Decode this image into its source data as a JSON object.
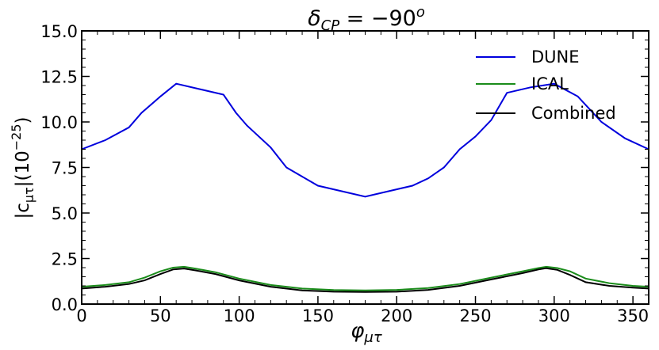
{
  "chart_data": {
    "type": "line",
    "title": "δ",
    "title_sub": "CP",
    "title_rest": " = −90",
    "title_sup": "o",
    "xlabel": "φ",
    "xlabel_sub": "μτ",
    "ylabel_pre": "|c",
    "ylabel_sub": "μτ",
    "ylabel_mid": "|(10",
    "ylabel_sup": "−25",
    "ylabel_post": ")",
    "xlim": [
      0,
      360
    ],
    "ylim": [
      0,
      15
    ],
    "xticks": [
      0,
      50,
      100,
      150,
      200,
      250,
      300,
      350
    ],
    "xtick_labels": [
      "0",
      "50",
      "100",
      "150",
      "200",
      "250",
      "300",
      "350"
    ],
    "yticks": [
      0,
      2.5,
      5,
      7.5,
      10,
      12.5,
      15
    ],
    "ytick_labels": [
      "0.0",
      "2.5",
      "5.0",
      "7.5",
      "10.0",
      "12.5",
      "15.0"
    ],
    "grid": false,
    "legend_position": "top-right",
    "series": [
      {
        "name": "DUNE",
        "color": "#0000dd",
        "x": [
          0,
          15,
          30,
          38,
          50,
          60,
          75,
          90,
          98,
          105,
          120,
          130,
          150,
          180,
          210,
          220,
          230,
          240,
          250,
          260,
          270,
          285,
          300,
          315,
          330,
          345,
          360
        ],
        "y": [
          8.5,
          9.0,
          9.7,
          10.5,
          11.4,
          12.1,
          11.8,
          11.5,
          10.5,
          9.8,
          8.6,
          7.5,
          6.5,
          5.9,
          6.5,
          6.9,
          7.5,
          8.5,
          9.2,
          10.1,
          11.6,
          11.9,
          12.1,
          11.4,
          10.0,
          9.1,
          8.5
        ]
      },
      {
        "name": "ICAL",
        "color": "#1a8c1a",
        "x": [
          0,
          15,
          30,
          40,
          50,
          58,
          65,
          72,
          85,
          100,
          120,
          140,
          160,
          180,
          200,
          220,
          240,
          260,
          280,
          290,
          295,
          302,
          310,
          320,
          335,
          350,
          360
        ],
        "y": [
          0.95,
          1.05,
          1.2,
          1.45,
          1.8,
          2.0,
          2.05,
          1.95,
          1.75,
          1.4,
          1.05,
          0.85,
          0.77,
          0.75,
          0.78,
          0.88,
          1.1,
          1.45,
          1.8,
          1.98,
          2.05,
          1.98,
          1.8,
          1.4,
          1.15,
          1.0,
          0.95
        ]
      },
      {
        "name": "Combined",
        "color": "#000000",
        "x": [
          0,
          15,
          30,
          40,
          50,
          58,
          65,
          72,
          85,
          100,
          120,
          140,
          160,
          180,
          200,
          220,
          240,
          260,
          280,
          290,
          295,
          302,
          310,
          320,
          335,
          350,
          360
        ],
        "y": [
          0.85,
          0.95,
          1.1,
          1.3,
          1.65,
          1.9,
          1.95,
          1.85,
          1.65,
          1.3,
          0.95,
          0.75,
          0.68,
          0.66,
          0.68,
          0.78,
          1.0,
          1.35,
          1.7,
          1.9,
          1.97,
          1.88,
          1.6,
          1.2,
          1.0,
          0.9,
          0.85
        ]
      }
    ]
  }
}
